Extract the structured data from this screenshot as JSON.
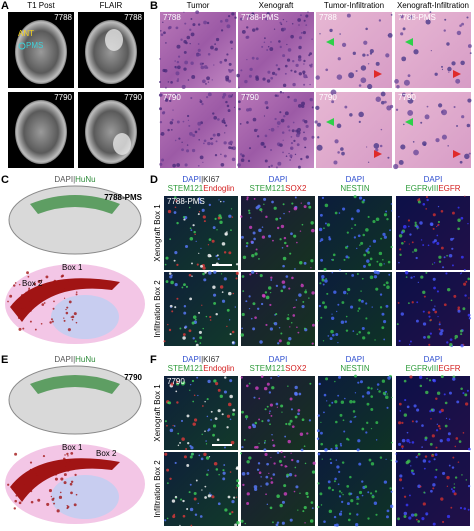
{
  "panels": {
    "A": {
      "label": "A",
      "columns": [
        "T1 Post",
        "FLAIR"
      ],
      "image_labels": [
        [
          "7788",
          "7788"
        ],
        [
          "7790",
          "7790"
        ]
      ],
      "annotations": [
        "ANT",
        "PMS"
      ]
    },
    "B": {
      "label": "B",
      "columns": [
        "Tumor",
        "Xenograft",
        "Tumor-Infiltration",
        "Xenograft-Infiltration"
      ],
      "image_labels": [
        [
          "7788",
          "7788-PMS",
          "7788",
          "7788-PMS"
        ],
        [
          "7790",
          "7790",
          "7790",
          "7790"
        ]
      ]
    },
    "C": {
      "label": "C",
      "stain": [
        {
          "text": "DAPI",
          "color": "#555555"
        },
        {
          "text": "|",
          "color": "#555555"
        },
        {
          "text": "HuNu",
          "color": "#2e8b3a"
        }
      ],
      "sample": "7788-PMS",
      "boxes": [
        "Box 1",
        "Box 2"
      ]
    },
    "D": {
      "label": "D",
      "sample": "7788-PMS",
      "columns": [
        [
          [
            {
              "text": "DAPI",
              "color": "#2f4fd0"
            },
            {
              "text": "|KI67",
              "color": "#333333"
            }
          ],
          [
            {
              "text": "STEM121",
              "color": "#2e9b3a"
            },
            {
              "text": "Endoglin",
              "color": "#d42020"
            }
          ]
        ],
        [
          [
            {
              "text": "DAPI",
              "color": "#2f4fd0"
            }
          ],
          [
            {
              "text": "STEM121",
              "color": "#2e9b3a"
            },
            {
              "text": "SOX2",
              "color": "#d42020"
            }
          ]
        ],
        [
          [
            {
              "text": "DAPI",
              "color": "#2f4fd0"
            }
          ],
          [
            {
              "text": "NESTIN",
              "color": "#2e9b3a"
            }
          ]
        ],
        [
          [
            {
              "text": "DAPI",
              "color": "#2f4fd0"
            }
          ],
          [
            {
              "text": "EGFRvIII",
              "color": "#2e9b3a"
            },
            {
              "text": "EGFR",
              "color": "#d42020"
            }
          ]
        ]
      ],
      "rows": [
        "Xenograft Box 1",
        "Infiltration Box 2"
      ]
    },
    "E": {
      "label": "E",
      "stain": [
        {
          "text": "DAPI",
          "color": "#555555"
        },
        {
          "text": "|",
          "color": "#555555"
        },
        {
          "text": "HuNu",
          "color": "#2e8b3a"
        }
      ],
      "sample": "7790",
      "boxes": [
        "Box 1",
        "Box 2"
      ]
    },
    "F": {
      "label": "F",
      "sample": "7790",
      "columns": [
        [
          [
            {
              "text": "DAPI",
              "color": "#2f4fd0"
            },
            {
              "text": "|KI67",
              "color": "#333333"
            }
          ],
          [
            {
              "text": "STEM121",
              "color": "#2e9b3a"
            },
            {
              "text": "Endoglin",
              "color": "#d42020"
            }
          ]
        ],
        [
          [
            {
              "text": "DAPI",
              "color": "#2f4fd0"
            }
          ],
          [
            {
              "text": "STEM121",
              "color": "#2e9b3a"
            },
            {
              "text": "SOX2",
              "color": "#d42020"
            }
          ]
        ],
        [
          [
            {
              "text": "DAPI",
              "color": "#2f4fd0"
            }
          ],
          [
            {
              "text": "NESTIN",
              "color": "#2e9b3a"
            }
          ]
        ],
        [
          [
            {
              "text": "DAPI",
              "color": "#2f4fd0"
            }
          ],
          [
            {
              "text": "EGFRvIII",
              "color": "#2e9b3a"
            },
            {
              "text": "EGFR",
              "color": "#d42020"
            }
          ]
        ]
      ],
      "rows": [
        "Xenograft Box 1",
        "Infiltration Box 2"
      ]
    }
  }
}
